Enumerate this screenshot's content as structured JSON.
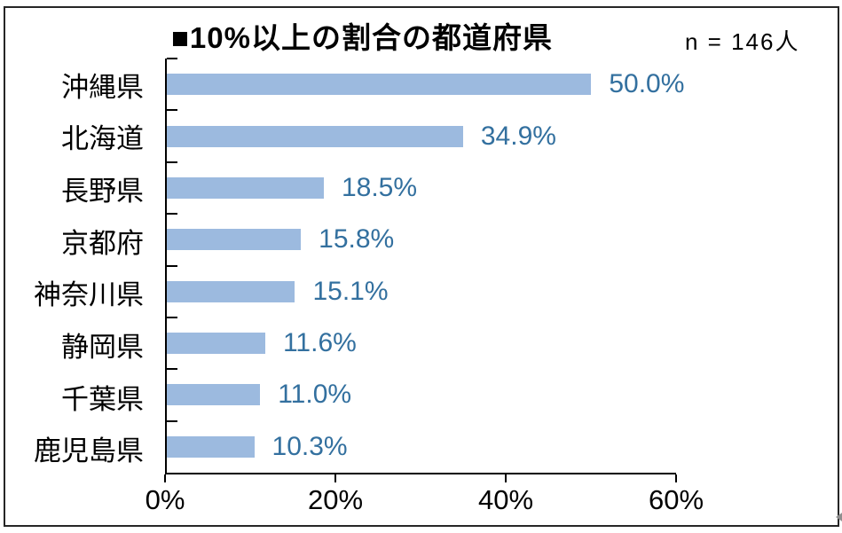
{
  "chart": {
    "title": "■10%以上の割合の都道府県",
    "n_label": "n = 146人",
    "colors": {
      "bar": "#9CBADF",
      "value_label": "#33709F",
      "axis": "#000000",
      "border": "#262626"
    }
  },
  "chart_data": {
    "type": "bar",
    "orientation": "horizontal",
    "title": "■10%以上の割合の都道府県",
    "annotation": "n = 146人",
    "categories": [
      "沖縄県",
      "北海道",
      "長野県",
      "京都府",
      "神奈川県",
      "静岡県",
      "千葉県",
      "鹿児島県"
    ],
    "values": [
      50.0,
      34.9,
      18.5,
      15.8,
      15.1,
      11.6,
      11.0,
      10.3
    ],
    "value_labels": [
      "50.0%",
      "34.9%",
      "18.5%",
      "15.8%",
      "15.1%",
      "11.6%",
      "11.0%",
      "10.3%"
    ],
    "xlim": [
      0,
      60
    ],
    "x_ticks": [
      "0%",
      "20%",
      "40%",
      "60%"
    ],
    "x_tick_values": [
      0,
      20,
      40,
      60
    ],
    "xlabel": "",
    "ylabel": "",
    "grid": false,
    "legend": false
  }
}
